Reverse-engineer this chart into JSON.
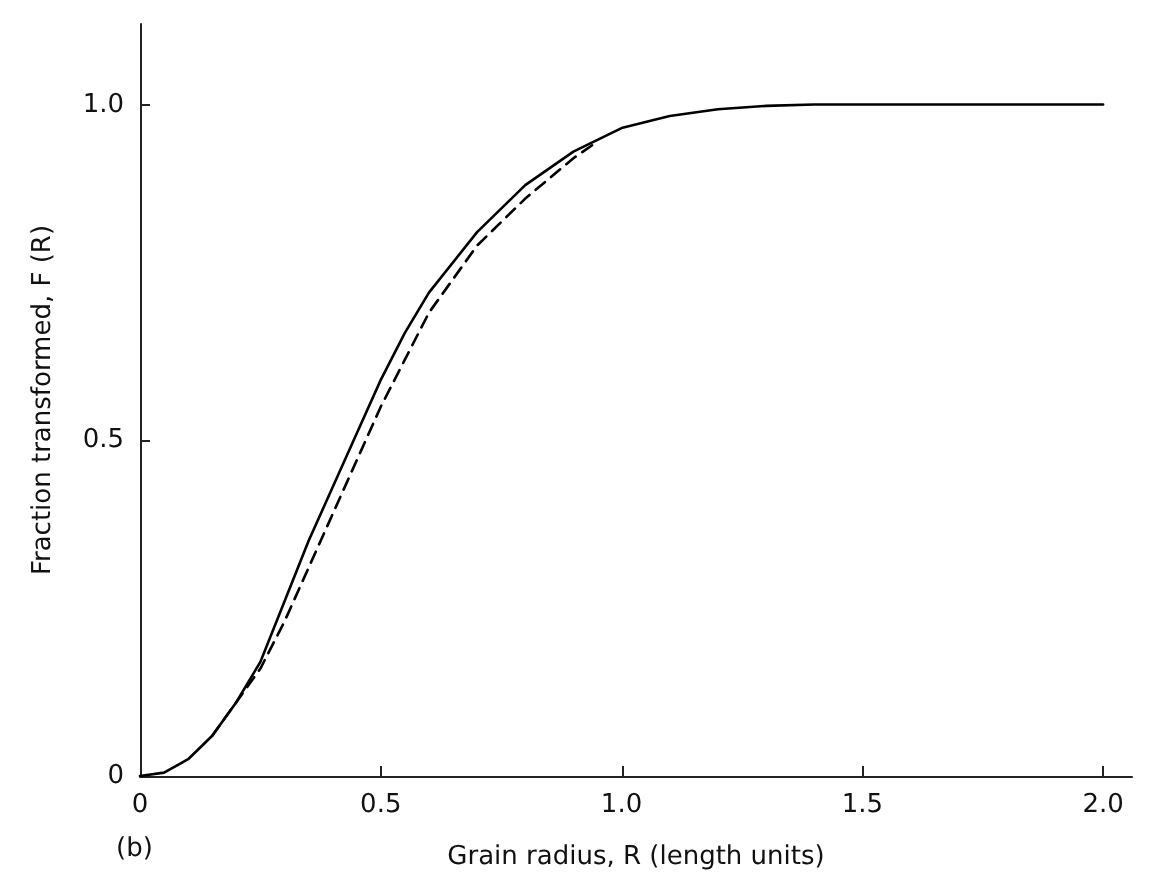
{
  "chart_data": {
    "type": "line",
    "xlabel": "Grain radius, R (length units)",
    "ylabel": "Fraction transformed, F (R)",
    "annotations": [
      "(b)"
    ],
    "xlim": [
      0,
      2.06
    ],
    "xticks": [
      {
        "value": 0,
        "label": "0"
      },
      0.5,
      {
        "value": 1,
        "label": "1.0"
      },
      1.5,
      {
        "value": 2,
        "label": "2.0"
      }
    ],
    "ylim": [
      0,
      1.12
    ],
    "yticks": [
      {
        "value": 0,
        "label": "0"
      },
      0.5,
      {
        "value": 1,
        "label": "1.0"
      }
    ],
    "grid": false,
    "marker": "none",
    "series": [
      {
        "color": "#000000",
        "line_style": "solid",
        "x": [
          0,
          0.05,
          0.1,
          0.15,
          0.2,
          0.25,
          0.3,
          0.35,
          0.4,
          0.45,
          0.5,
          0.55,
          0.6,
          0.7,
          0.8,
          0.9,
          1.0,
          1.1,
          1.2,
          1.3,
          1.4,
          1.6,
          1.8,
          2.0
        ],
        "values": [
          0,
          0.005,
          0.025,
          0.06,
          0.11,
          0.17,
          0.26,
          0.35,
          0.43,
          0.51,
          0.59,
          0.66,
          0.72,
          0.81,
          0.88,
          0.93,
          0.965,
          0.983,
          0.993,
          0.998,
          1,
          1,
          1,
          1
        ]
      },
      {
        "color": "#000000",
        "line_style": "dashed",
        "x": [
          0.15,
          0.2,
          0.25,
          0.3,
          0.35,
          0.4,
          0.45,
          0.5,
          0.55,
          0.6,
          0.7,
          0.8,
          0.9,
          0.95
        ],
        "values": [
          0.06,
          0.11,
          0.16,
          0.23,
          0.31,
          0.39,
          0.47,
          0.55,
          0.62,
          0.69,
          0.79,
          0.86,
          0.92,
          0.945
        ]
      }
    ]
  }
}
